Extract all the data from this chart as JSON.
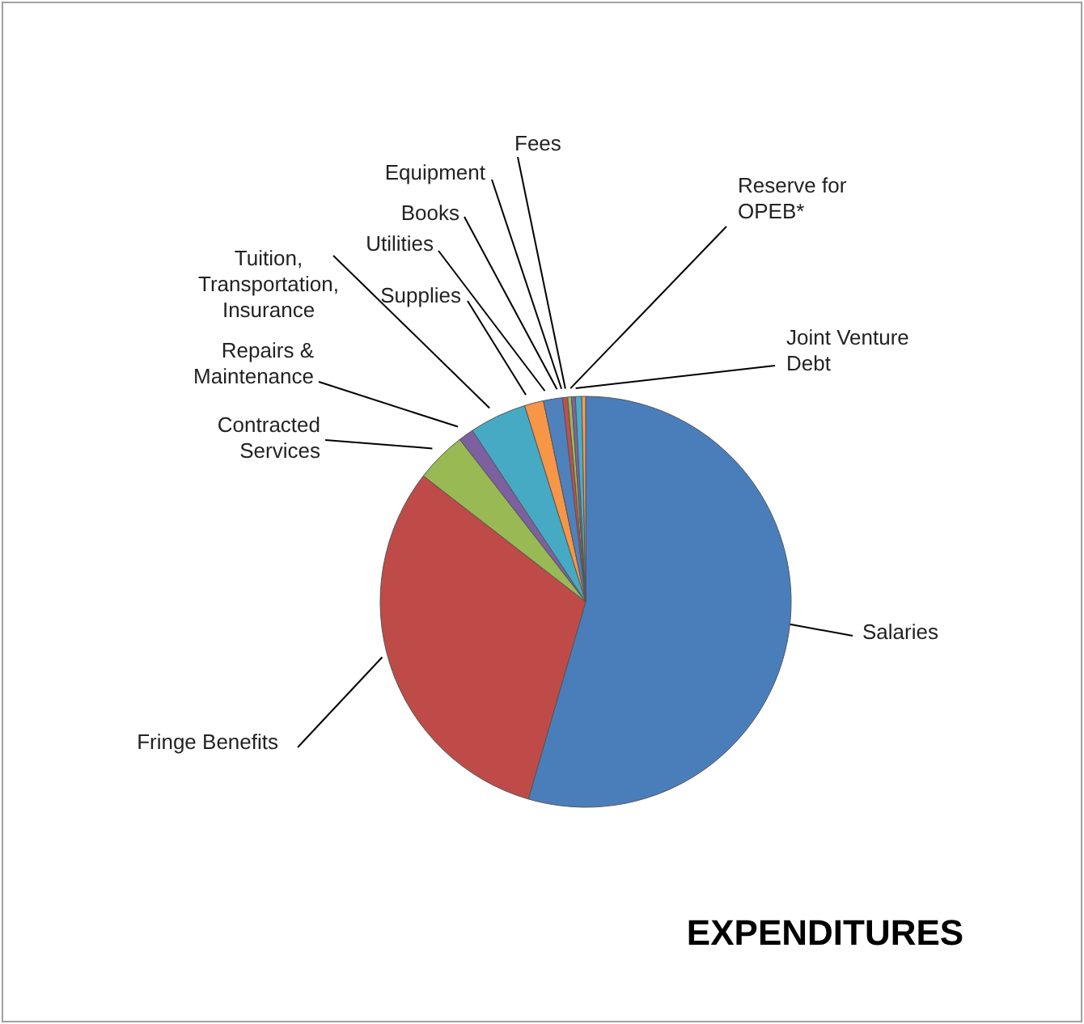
{
  "chart_data": {
    "type": "pie",
    "title": "EXPENDITURES",
    "categories": [
      "Salaries",
      "Fringe Benefits",
      "Contracted Services",
      "Repairs & Maintenance",
      "Tuition, Transportation, Insurance",
      "Supplies",
      "Utilities",
      "Books",
      "Equipment",
      "Fees",
      "Reserve for OPEB*",
      "Joint Venture Debt"
    ],
    "values": [
      54.5,
      31,
      4,
      1.2,
      4.5,
      1.5,
      1.5,
      0.4,
      0.3,
      0.3,
      0.5,
      0.3
    ],
    "colors": [
      "#4a7ebb",
      "#be4b48",
      "#98b954",
      "#7d60a0",
      "#46aac5",
      "#f79646",
      "#4f81bd",
      "#c0504d",
      "#9bbb59",
      "#8064a2",
      "#4bacc6",
      "#f59d56"
    ],
    "grid": false
  }
}
